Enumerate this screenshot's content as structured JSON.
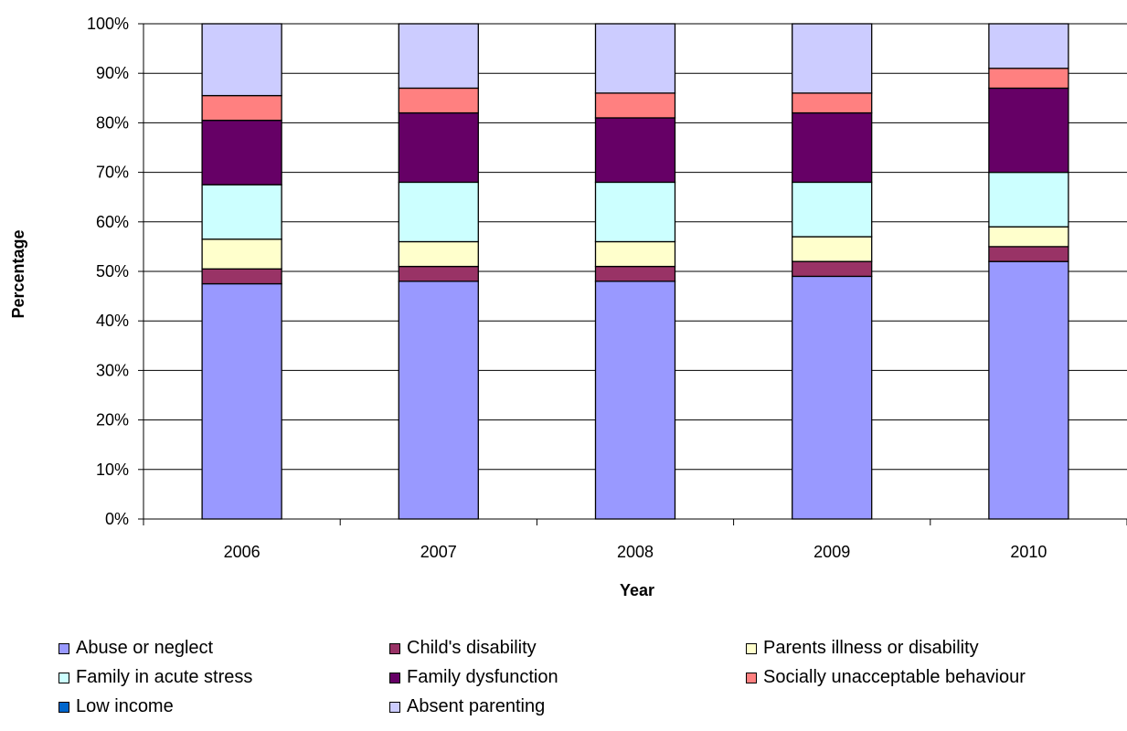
{
  "chart_data": {
    "type": "bar",
    "stacked": true,
    "categories": [
      "2006",
      "2007",
      "2008",
      "2009",
      "2010"
    ],
    "series": [
      {
        "name": "Abuse or neglect",
        "color": "#9999FF",
        "values": [
          47.5,
          48,
          48,
          49,
          52
        ]
      },
      {
        "name": "Child's disability",
        "color": "#993366",
        "values": [
          3,
          3,
          3,
          3,
          3
        ]
      },
      {
        "name": "Parents illness or disability",
        "color": "#FFFFCC",
        "values": [
          6,
          5,
          5,
          5,
          4
        ]
      },
      {
        "name": "Family in acute stress",
        "color": "#CCFFFF",
        "values": [
          11,
          12,
          12,
          11,
          11
        ]
      },
      {
        "name": "Family dysfunction",
        "color": "#660066",
        "values": [
          13,
          14,
          13,
          14,
          17
        ]
      },
      {
        "name": "Socially unacceptable behaviour",
        "color": "#FF8080",
        "values": [
          5,
          5,
          5,
          4,
          4
        ]
      },
      {
        "name": "Low income",
        "color": "#0066CC",
        "values": [
          0,
          0,
          0,
          0,
          0
        ]
      },
      {
        "name": "Absent parenting",
        "color": "#CCCCFF",
        "values": [
          14.5,
          13,
          14,
          14,
          9
        ]
      }
    ],
    "yticks": [
      "0%",
      "10%",
      "20%",
      "30%",
      "40%",
      "50%",
      "60%",
      "70%",
      "80%",
      "90%",
      "100%"
    ],
    "ylim": [
      0,
      100
    ],
    "xlabel": "Year",
    "ylabel": "Percentage",
    "grid": true,
    "legend_position": "bottom"
  }
}
